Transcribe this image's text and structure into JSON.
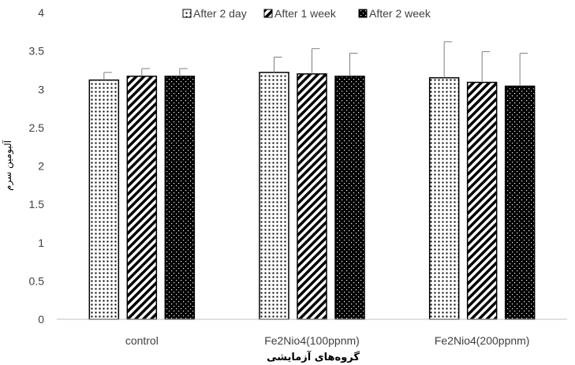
{
  "chart_data": {
    "type": "bar",
    "title": "",
    "xlabel": "گروه‌های آزمایشی",
    "ylabel": "آلبومین سرم",
    "ylim": [
      0,
      4
    ],
    "yticks": [
      "0",
      "0.5",
      "1",
      "1.5",
      "2",
      "2.5",
      "3",
      "3.5",
      "4"
    ],
    "grid": false,
    "legend_position": "top",
    "categories": [
      "control",
      "Fe2Nio4(100ppnm)",
      "Fe2Nio4(200ppnm)"
    ],
    "series": [
      {
        "name": "After 2 day",
        "pattern": "dots",
        "values": [
          3.12,
          3.22,
          3.15
        ],
        "errors": [
          0.1,
          0.2,
          0.47
        ]
      },
      {
        "name": "After 1 week",
        "pattern": "diagonal-stripes",
        "values": [
          3.17,
          3.2,
          3.09
        ],
        "errors": [
          0.1,
          0.33,
          0.4
        ]
      },
      {
        "name": "After 2 week",
        "pattern": "black-dots",
        "values": [
          3.17,
          3.17,
          3.04
        ],
        "errors": [
          0.1,
          0.3,
          0.43
        ]
      }
    ],
    "colors": {
      "bar_outline": "#000000",
      "axis": "#bfbfbf",
      "error_bar": "#7f7f7f",
      "text": "#404040"
    }
  }
}
